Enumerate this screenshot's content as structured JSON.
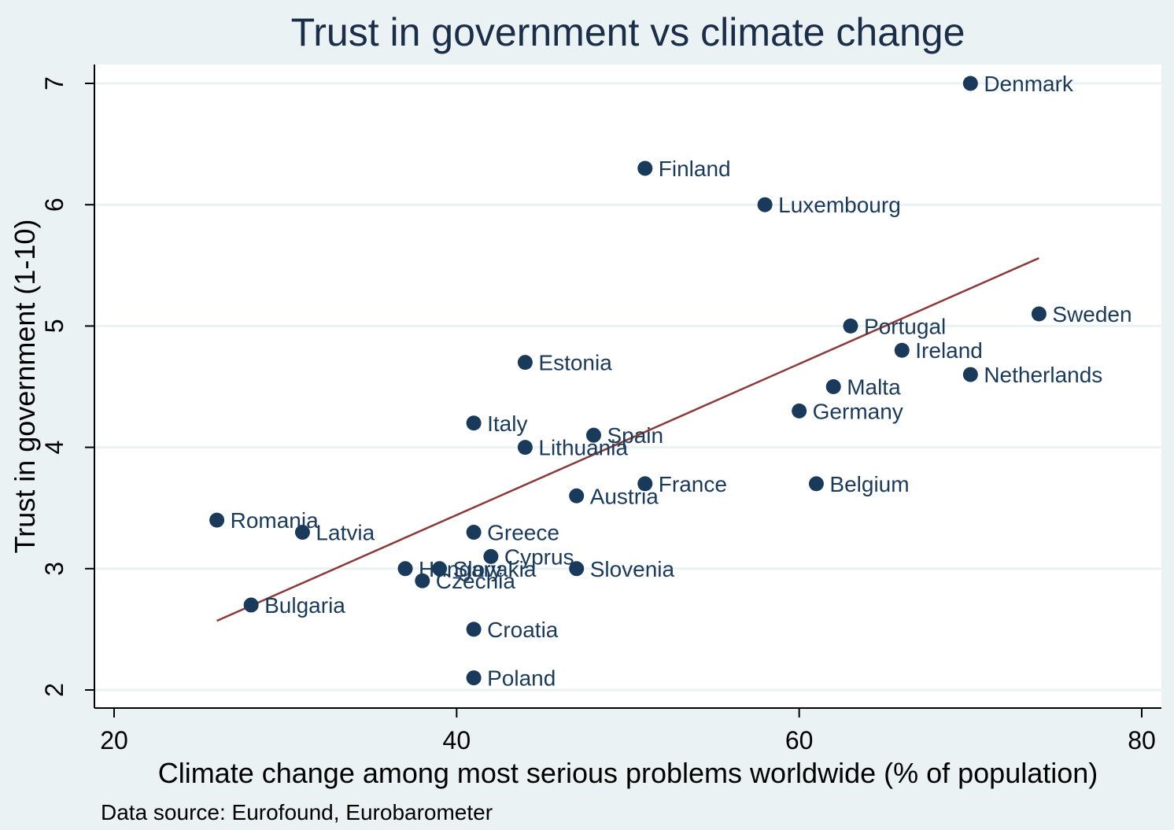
{
  "chart_data": {
    "type": "scatter",
    "title": "Trust in government vs climate change",
    "xlabel": "Climate change among most serious problems worldwide (% of population)",
    "ylabel": "Trust in government (1-10)",
    "note": "Data source: Eurofound, Eurobarometer",
    "xlim": [
      19.5,
      80.6
    ],
    "ylim": [
      1.85,
      7.2
    ],
    "xticks": [
      20,
      40,
      60,
      80
    ],
    "yticks": [
      2,
      3,
      4,
      5,
      6,
      7
    ],
    "grid": true,
    "colors": {
      "point": "#1a3a5c",
      "fit_line": "#8b3a3a",
      "background": "#eaf2f3",
      "plot_bg": "#ffffff"
    },
    "points": [
      {
        "label": "Denmark",
        "x": 70,
        "y": 7.0
      },
      {
        "label": "Finland",
        "x": 51,
        "y": 6.3
      },
      {
        "label": "Luxembourg",
        "x": 58,
        "y": 6.0
      },
      {
        "label": "Sweden",
        "x": 74,
        "y": 5.1
      },
      {
        "label": "Portugal",
        "x": 63,
        "y": 5.0
      },
      {
        "label": "Ireland",
        "x": 66,
        "y": 4.8
      },
      {
        "label": "Netherlands",
        "x": 70,
        "y": 4.6
      },
      {
        "label": "Estonia",
        "x": 44,
        "y": 4.7
      },
      {
        "label": "Malta",
        "x": 62,
        "y": 4.5
      },
      {
        "label": "Germany",
        "x": 60,
        "y": 4.3
      },
      {
        "label": "Italy",
        "x": 41,
        "y": 4.2
      },
      {
        "label": "Spain",
        "x": 48,
        "y": 4.1
      },
      {
        "label": "Lithuania",
        "x": 44,
        "y": 4.0
      },
      {
        "label": "France",
        "x": 51,
        "y": 3.7
      },
      {
        "label": "Belgium",
        "x": 61,
        "y": 3.7
      },
      {
        "label": "Austria",
        "x": 47,
        "y": 3.6
      },
      {
        "label": "Romania",
        "x": 26,
        "y": 3.4
      },
      {
        "label": "Latvia",
        "x": 31,
        "y": 3.3
      },
      {
        "label": "Greece",
        "x": 41,
        "y": 3.3
      },
      {
        "label": "Cyprus",
        "x": 42,
        "y": 3.1
      },
      {
        "label": "Hungary",
        "x": 37,
        "y": 3.0
      },
      {
        "label": "Slovakia",
        "x": 39,
        "y": 3.0
      },
      {
        "label": "Slovenia",
        "x": 47,
        "y": 3.0
      },
      {
        "label": "Czechia",
        "x": 38,
        "y": 2.9
      },
      {
        "label": "Bulgaria",
        "x": 28,
        "y": 2.7
      },
      {
        "label": "Croatia",
        "x": 41,
        "y": 2.5
      },
      {
        "label": "Poland",
        "x": 41,
        "y": 2.1
      }
    ],
    "fit_line": {
      "x": [
        26,
        74
      ],
      "y": [
        2.57,
        5.56
      ]
    }
  }
}
